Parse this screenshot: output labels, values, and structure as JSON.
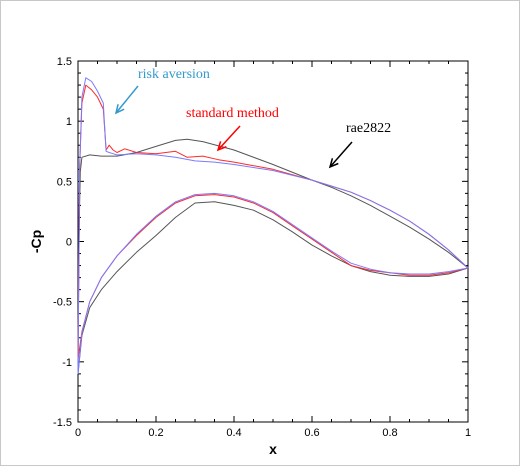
{
  "chart_data": {
    "type": "line",
    "xlabel": "x",
    "ylabel": "-Cp",
    "xlim": [
      0,
      1
    ],
    "ylim": [
      -1.5,
      1.5
    ],
    "x_ticks": [
      "0",
      "0.2",
      "0.4",
      "0.6",
      "0.8",
      "1"
    ],
    "y_ticks": [
      "1.5",
      "1",
      "0.5",
      "0",
      "-0.5",
      "-1",
      "-1.5"
    ],
    "grid": false,
    "series": [
      {
        "name": "rae2822",
        "color": "#555555",
        "upper": [
          [
            0,
            -1.1
          ],
          [
            0.002,
            -0.2
          ],
          [
            0.004,
            0.3
          ],
          [
            0.006,
            0.58
          ],
          [
            0.01,
            0.7
          ],
          [
            0.03,
            0.72
          ],
          [
            0.06,
            0.71
          ],
          [
            0.1,
            0.71
          ],
          [
            0.15,
            0.74
          ],
          [
            0.2,
            0.79
          ],
          [
            0.25,
            0.84
          ],
          [
            0.28,
            0.85
          ],
          [
            0.32,
            0.83
          ],
          [
            0.4,
            0.76
          ],
          [
            0.5,
            0.64
          ],
          [
            0.6,
            0.51
          ],
          [
            0.65,
            0.45
          ],
          [
            0.7,
            0.38
          ],
          [
            0.75,
            0.3
          ],
          [
            0.8,
            0.21
          ],
          [
            0.85,
            0.12
          ],
          [
            0.9,
            0.02
          ],
          [
            0.95,
            -0.09
          ],
          [
            1,
            -0.22
          ]
        ],
        "lower": [
          [
            0,
            -1.1
          ],
          [
            0.01,
            -0.78
          ],
          [
            0.03,
            -0.55
          ],
          [
            0.06,
            -0.4
          ],
          [
            0.1,
            -0.25
          ],
          [
            0.15,
            -0.09
          ],
          [
            0.2,
            0.05
          ],
          [
            0.25,
            0.2
          ],
          [
            0.3,
            0.32
          ],
          [
            0.35,
            0.33
          ],
          [
            0.4,
            0.3
          ],
          [
            0.45,
            0.26
          ],
          [
            0.5,
            0.18
          ],
          [
            0.55,
            0.08
          ],
          [
            0.6,
            -0.03
          ],
          [
            0.65,
            -0.12
          ],
          [
            0.7,
            -0.2
          ],
          [
            0.75,
            -0.25
          ],
          [
            0.8,
            -0.28
          ],
          [
            0.85,
            -0.29
          ],
          [
            0.9,
            -0.29
          ],
          [
            0.95,
            -0.27
          ],
          [
            1,
            -0.22
          ]
        ]
      },
      {
        "name": "standard method",
        "color": "#ff2a2a",
        "upper": [
          [
            0,
            -0.98
          ],
          [
            0.004,
            0.6
          ],
          [
            0.01,
            1.15
          ],
          [
            0.02,
            1.3
          ],
          [
            0.035,
            1.26
          ],
          [
            0.05,
            1.2
          ],
          [
            0.065,
            1.1
          ],
          [
            0.072,
            0.76
          ],
          [
            0.08,
            0.8
          ],
          [
            0.09,
            0.76
          ],
          [
            0.1,
            0.74
          ],
          [
            0.12,
            0.77
          ],
          [
            0.15,
            0.74
          ],
          [
            0.2,
            0.73
          ],
          [
            0.25,
            0.75
          ],
          [
            0.28,
            0.7
          ],
          [
            0.32,
            0.71
          ],
          [
            0.36,
            0.68
          ],
          [
            0.4,
            0.66
          ],
          [
            0.5,
            0.6
          ],
          [
            0.6,
            0.51
          ],
          [
            0.65,
            0.46
          ],
          [
            0.7,
            0.41
          ],
          [
            0.75,
            0.34
          ],
          [
            0.8,
            0.26
          ],
          [
            0.85,
            0.17
          ],
          [
            0.9,
            0.06
          ],
          [
            0.95,
            -0.07
          ],
          [
            1,
            -0.22
          ]
        ],
        "lower": [
          [
            0,
            -0.98
          ],
          [
            0.01,
            -0.75
          ],
          [
            0.03,
            -0.5
          ],
          [
            0.06,
            -0.3
          ],
          [
            0.1,
            -0.12
          ],
          [
            0.15,
            0.05
          ],
          [
            0.2,
            0.2
          ],
          [
            0.25,
            0.32
          ],
          [
            0.3,
            0.38
          ],
          [
            0.35,
            0.39
          ],
          [
            0.4,
            0.37
          ],
          [
            0.45,
            0.32
          ],
          [
            0.5,
            0.24
          ],
          [
            0.55,
            0.13
          ],
          [
            0.6,
            0.02
          ],
          [
            0.65,
            -0.09
          ],
          [
            0.7,
            -0.2
          ],
          [
            0.75,
            -0.24
          ],
          [
            0.8,
            -0.26
          ],
          [
            0.85,
            -0.28
          ],
          [
            0.9,
            -0.28
          ],
          [
            0.95,
            -0.26
          ],
          [
            1,
            -0.22
          ]
        ]
      },
      {
        "name": "risk aversion",
        "color": "#7a7aff",
        "upper": [
          [
            0,
            -1.1
          ],
          [
            0.004,
            0.6
          ],
          [
            0.01,
            1.2
          ],
          [
            0.02,
            1.36
          ],
          [
            0.035,
            1.33
          ],
          [
            0.05,
            1.25
          ],
          [
            0.065,
            1.15
          ],
          [
            0.072,
            0.75
          ],
          [
            0.08,
            0.74
          ],
          [
            0.09,
            0.73
          ],
          [
            0.1,
            0.72
          ],
          [
            0.15,
            0.73
          ],
          [
            0.2,
            0.72
          ],
          [
            0.25,
            0.7
          ],
          [
            0.3,
            0.67
          ],
          [
            0.35,
            0.66
          ],
          [
            0.4,
            0.64
          ],
          [
            0.5,
            0.59
          ],
          [
            0.6,
            0.51
          ],
          [
            0.65,
            0.46
          ],
          [
            0.7,
            0.41
          ],
          [
            0.75,
            0.34
          ],
          [
            0.8,
            0.26
          ],
          [
            0.85,
            0.17
          ],
          [
            0.9,
            0.06
          ],
          [
            0.95,
            -0.07
          ],
          [
            1,
            -0.22
          ]
        ],
        "lower": [
          [
            0,
            -1.1
          ],
          [
            0.01,
            -0.76
          ],
          [
            0.03,
            -0.5
          ],
          [
            0.06,
            -0.3
          ],
          [
            0.1,
            -0.12
          ],
          [
            0.15,
            0.06
          ],
          [
            0.2,
            0.21
          ],
          [
            0.25,
            0.33
          ],
          [
            0.3,
            0.39
          ],
          [
            0.35,
            0.4
          ],
          [
            0.4,
            0.38
          ],
          [
            0.45,
            0.33
          ],
          [
            0.5,
            0.25
          ],
          [
            0.55,
            0.14
          ],
          [
            0.6,
            0.03
          ],
          [
            0.65,
            -0.08
          ],
          [
            0.7,
            -0.18
          ],
          [
            0.75,
            -0.23
          ],
          [
            0.8,
            -0.26
          ],
          [
            0.85,
            -0.27
          ],
          [
            0.9,
            -0.27
          ],
          [
            0.95,
            -0.25
          ],
          [
            1,
            -0.22
          ]
        ]
      }
    ],
    "annotations": [
      {
        "text": "risk aversion",
        "color": "#3399cc"
      },
      {
        "text": "standard method",
        "color": "#ff0000"
      },
      {
        "text": "rae2822",
        "color": "#000000"
      }
    ]
  }
}
